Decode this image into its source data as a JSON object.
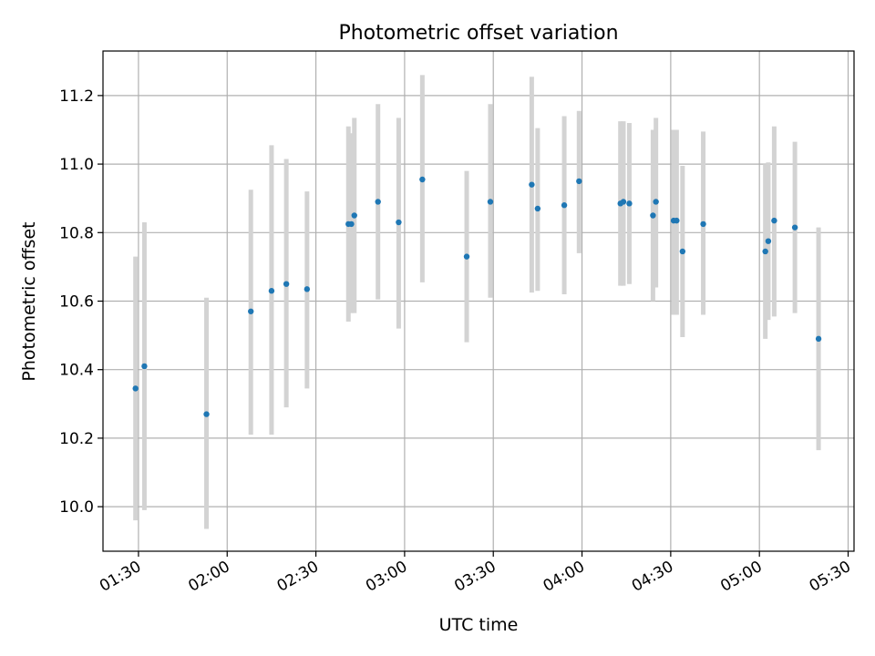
{
  "chart_data": {
    "type": "scatter",
    "title": "Photometric offset variation",
    "xlabel": "UTC time",
    "ylabel": "Photometric offset",
    "x_ticks": [
      "01:30",
      "02:00",
      "02:30",
      "03:00",
      "03:30",
      "04:00",
      "04:30",
      "05:00",
      "05:30"
    ],
    "y_ticks": [
      "10.0",
      "10.2",
      "10.4",
      "10.6",
      "10.8",
      "11.0",
      "11.2"
    ],
    "xlim": [
      "01:18",
      "05:32"
    ],
    "ylim": [
      9.87,
      11.33
    ],
    "grid": true,
    "colors": {
      "points": "#1f77b4",
      "error_bars": "#d3d3d3",
      "grid": "#b0b0b0"
    },
    "series": [
      {
        "points": [
          {
            "time": "01:29",
            "value": 10.345,
            "lower": 9.96,
            "upper": 10.73
          },
          {
            "time": "01:32",
            "value": 10.41,
            "lower": 9.99,
            "upper": 10.83
          },
          {
            "time": "01:53",
            "value": 10.27,
            "lower": 9.935,
            "upper": 10.61
          },
          {
            "time": "02:08",
            "value": 10.57,
            "lower": 10.21,
            "upper": 10.925
          },
          {
            "time": "02:15",
            "value": 10.63,
            "lower": 10.21,
            "upper": 11.055
          },
          {
            "time": "02:20",
            "value": 10.65,
            "lower": 10.29,
            "upper": 11.015
          },
          {
            "time": "02:27",
            "value": 10.635,
            "lower": 10.345,
            "upper": 10.92
          },
          {
            "time": "02:41",
            "value": 10.825,
            "lower": 10.54,
            "upper": 11.11
          },
          {
            "time": "02:42",
            "value": 10.825,
            "lower": 10.565,
            "upper": 11.09
          },
          {
            "time": "02:43",
            "value": 10.85,
            "lower": 10.565,
            "upper": 11.135
          },
          {
            "time": "02:51",
            "value": 10.89,
            "lower": 10.605,
            "upper": 11.175
          },
          {
            "time": "02:58",
            "value": 10.83,
            "lower": 10.52,
            "upper": 11.135
          },
          {
            "time": "03:06",
            "value": 10.955,
            "lower": 10.655,
            "upper": 11.26
          },
          {
            "time": "03:21",
            "value": 10.73,
            "lower": 10.48,
            "upper": 10.98
          },
          {
            "time": "03:29",
            "value": 10.89,
            "lower": 10.61,
            "upper": 11.175
          },
          {
            "time": "03:43",
            "value": 10.94,
            "lower": 10.625,
            "upper": 11.255
          },
          {
            "time": "03:45",
            "value": 10.87,
            "lower": 10.63,
            "upper": 11.105
          },
          {
            "time": "03:54",
            "value": 10.88,
            "lower": 10.62,
            "upper": 11.14
          },
          {
            "time": "03:59",
            "value": 10.95,
            "lower": 10.74,
            "upper": 11.155
          },
          {
            "time": "04:13",
            "value": 10.885,
            "lower": 10.645,
            "upper": 11.125
          },
          {
            "time": "04:14",
            "value": 10.89,
            "lower": 10.645,
            "upper": 11.125
          },
          {
            "time": "04:16",
            "value": 10.885,
            "lower": 10.65,
            "upper": 11.12
          },
          {
            "time": "04:24",
            "value": 10.85,
            "lower": 10.6,
            "upper": 11.1
          },
          {
            "time": "04:25",
            "value": 10.89,
            "lower": 10.64,
            "upper": 11.135
          },
          {
            "time": "04:31",
            "value": 10.835,
            "lower": 10.56,
            "upper": 11.1
          },
          {
            "time": "04:32",
            "value": 10.835,
            "lower": 10.56,
            "upper": 11.1
          },
          {
            "time": "04:34",
            "value": 10.745,
            "lower": 10.495,
            "upper": 10.995
          },
          {
            "time": "04:41",
            "value": 10.825,
            "lower": 10.56,
            "upper": 11.095
          },
          {
            "time": "05:02",
            "value": 10.745,
            "lower": 10.49,
            "upper": 11.0
          },
          {
            "time": "05:03",
            "value": 10.775,
            "lower": 10.545,
            "upper": 11.005
          },
          {
            "time": "05:05",
            "value": 10.835,
            "lower": 10.555,
            "upper": 11.11
          },
          {
            "time": "05:12",
            "value": 10.815,
            "lower": 10.565,
            "upper": 11.065
          },
          {
            "time": "05:20",
            "value": 10.49,
            "lower": 10.165,
            "upper": 10.815
          }
        ]
      }
    ]
  }
}
